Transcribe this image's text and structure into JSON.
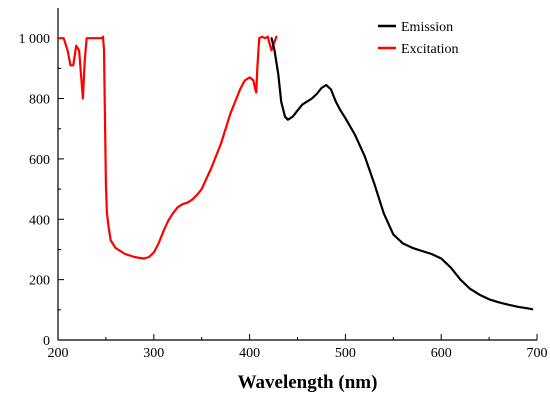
{
  "chart_data": {
    "type": "line",
    "title": "",
    "xlabel": "Wavelength (nm)",
    "ylabel": "",
    "xlim": [
      200,
      700
    ],
    "ylim": [
      0,
      1100
    ],
    "xticks": [
      200,
      300,
      400,
      500,
      600,
      700
    ],
    "yticks": [
      0,
      200,
      400,
      600,
      800,
      1000
    ],
    "ytick_labels": [
      "0",
      "200",
      "400",
      "600",
      "800",
      "1 000"
    ],
    "grid": false,
    "legend_position": "top-right",
    "series": [
      {
        "name": "Emission",
        "color": "#000000",
        "x": [
          423,
          426,
          430,
          433,
          437,
          440,
          445,
          450,
          455,
          460,
          465,
          470,
          475,
          480,
          485,
          490,
          495,
          500,
          510,
          520,
          530,
          540,
          550,
          560,
          570,
          580,
          590,
          600,
          610,
          620,
          630,
          640,
          650,
          660,
          670,
          680,
          690,
          695
        ],
        "y": [
          1000,
          960,
          880,
          790,
          740,
          730,
          740,
          760,
          780,
          790,
          800,
          815,
          835,
          845,
          830,
          790,
          760,
          735,
          680,
          610,
          520,
          420,
          350,
          320,
          305,
          295,
          285,
          270,
          240,
          200,
          170,
          150,
          135,
          125,
          117,
          110,
          105,
          102
        ]
      },
      {
        "name": "Excitation",
        "color": "#ff0000",
        "x": [
          200,
          206,
          210,
          213,
          216,
          219,
          222,
          224,
          226,
          228,
          230,
          233,
          240,
          246,
          247,
          248,
          249,
          250,
          251,
          253,
          255,
          260,
          265,
          270,
          275,
          280,
          285,
          290,
          295,
          300,
          305,
          310,
          315,
          320,
          325,
          330,
          335,
          340,
          345,
          350,
          360,
          370,
          380,
          390,
          395,
          400,
          404,
          406,
          407,
          408,
          410,
          413,
          416,
          419,
          421,
          423,
          425,
          428
        ],
        "y": [
          1000,
          1000,
          960,
          910,
          910,
          975,
          960,
          880,
          800,
          930,
          1000,
          1000,
          1000,
          1000,
          1005,
          960,
          750,
          520,
          420,
          370,
          330,
          305,
          295,
          285,
          280,
          275,
          272,
          270,
          275,
          290,
          320,
          360,
          395,
          420,
          440,
          450,
          455,
          465,
          480,
          500,
          570,
          650,
          750,
          830,
          860,
          870,
          860,
          830,
          820,
          900,
          1000,
          1005,
          1000,
          1005,
          980,
          960,
          980,
          1005
        ]
      }
    ]
  }
}
